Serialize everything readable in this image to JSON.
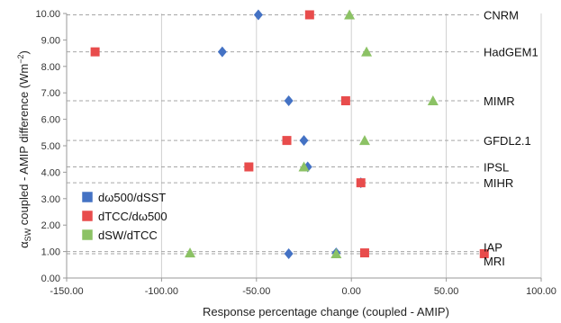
{
  "chart_data": {
    "type": "scatter",
    "title": "",
    "xlabel": "Response percentage change (coupled - AMIP)",
    "ylabel_main": "α",
    "ylabel_sub": "SW",
    "ylabel_rest": " coupled - AMIP difference (Wm",
    "ylabel_sup": "−2",
    "ylabel_close": ")",
    "xlim": [
      -150,
      100
    ],
    "ylim": [
      0,
      10
    ],
    "x_ticks": [
      -150,
      -100,
      -50,
      0,
      50,
      100
    ],
    "x_tick_labels": [
      "-150.00",
      "-100.00",
      "-50.00",
      "0.00",
      "50.00",
      "100.00"
    ],
    "y_ticks": [
      0,
      1,
      2,
      3,
      4,
      5,
      6,
      7,
      8,
      9,
      10
    ],
    "y_tick_labels": [
      "0.00",
      "1.00",
      "2.00",
      "3.00",
      "4.00",
      "5.00",
      "6.00",
      "7.00",
      "8.00",
      "9.00",
      "10.00"
    ],
    "vertical_grid": true,
    "legend_position": "left-middle",
    "models": [
      {
        "name": "CNRM",
        "y": 9.95
      },
      {
        "name": "HadGEM1",
        "y": 8.55
      },
      {
        "name": "MIMR",
        "y": 6.7
      },
      {
        "name": "GFDL2.1",
        "y": 5.2
      },
      {
        "name": "IPSL",
        "y": 4.2
      },
      {
        "name": "MIHR",
        "y": 3.6
      },
      {
        "name": "IAP",
        "y": 1.0
      },
      {
        "name": "MRI",
        "y": 0.92
      }
    ],
    "series": [
      {
        "name": "dω500/dSST",
        "marker": "diamond",
        "color": "#4472C4",
        "points": [
          {
            "x": -49,
            "y": 9.95
          },
          {
            "x": -68,
            "y": 8.55
          },
          {
            "x": -33,
            "y": 6.7
          },
          {
            "x": -25,
            "y": 5.2
          },
          {
            "x": -23,
            "y": 4.2
          },
          {
            "x": 5,
            "y": 3.6
          },
          {
            "x": -8,
            "y": 0.95
          },
          {
            "x": -33,
            "y": 0.92
          }
        ]
      },
      {
        "name": "dTCC/dω500",
        "marker": "square",
        "color": "#E84C4C",
        "points": [
          {
            "x": -22,
            "y": 9.95
          },
          {
            "x": -135,
            "y": 8.55
          },
          {
            "x": -3,
            "y": 6.7
          },
          {
            "x": -34,
            "y": 5.2
          },
          {
            "x": -54,
            "y": 4.2
          },
          {
            "x": 5,
            "y": 3.6
          },
          {
            "x": 7,
            "y": 0.95
          },
          {
            "x": 70,
            "y": 0.92
          }
        ]
      },
      {
        "name": "dSW/dTCC",
        "marker": "triangle",
        "color": "#8CC265",
        "points": [
          {
            "x": -1,
            "y": 9.95
          },
          {
            "x": 8,
            "y": 8.55
          },
          {
            "x": 43,
            "y": 6.7
          },
          {
            "x": 7,
            "y": 5.2
          },
          {
            "x": -25,
            "y": 4.2
          },
          {
            "x": -85,
            "y": 0.95
          },
          {
            "x": -8,
            "y": 0.92
          }
        ]
      }
    ]
  }
}
